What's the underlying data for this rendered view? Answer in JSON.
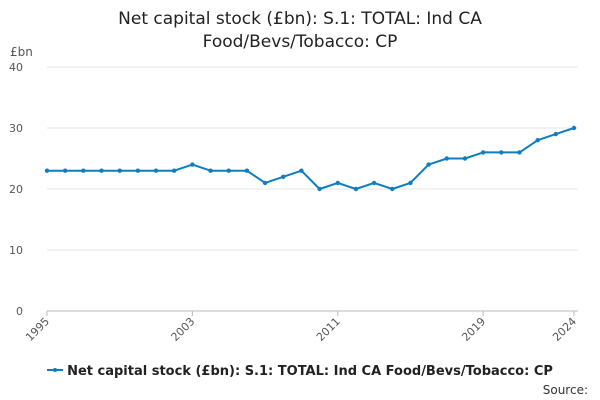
{
  "chart_data": {
    "type": "line",
    "title_lines": [
      "Net capital stock (£bn): S.1: TOTAL: Ind CA",
      "Food/Bevs/Tobacco: CP"
    ],
    "ylabel": "£bn",
    "xlabel": "",
    "ylim": [
      0,
      40
    ],
    "yticks": [
      0,
      10,
      20,
      30,
      40
    ],
    "xlim": [
      1995,
      2024
    ],
    "xticks": [
      1995,
      2003,
      2011,
      2019,
      2024
    ],
    "grid": true,
    "legend_position": "bottom",
    "series": [
      {
        "name": "Net capital stock (£bn): S.1: TOTAL: Ind CA Food/Bevs/Tobacco: CP",
        "color": "#0f7dc2",
        "x": [
          1995,
          1996,
          1997,
          1998,
          1999,
          2000,
          2001,
          2002,
          2003,
          2004,
          2005,
          2006,
          2007,
          2008,
          2009,
          2010,
          2011,
          2012,
          2013,
          2014,
          2015,
          2016,
          2017,
          2018,
          2019,
          2020,
          2021,
          2022,
          2023,
          2024
        ],
        "values": [
          23,
          23,
          23,
          23,
          23,
          23,
          23,
          23,
          24,
          23,
          23,
          23,
          21,
          22,
          23,
          20,
          21,
          20,
          21,
          20,
          21,
          24,
          25,
          25,
          26,
          26,
          26,
          28,
          29,
          30
        ]
      }
    ]
  },
  "source_label": "Source:"
}
